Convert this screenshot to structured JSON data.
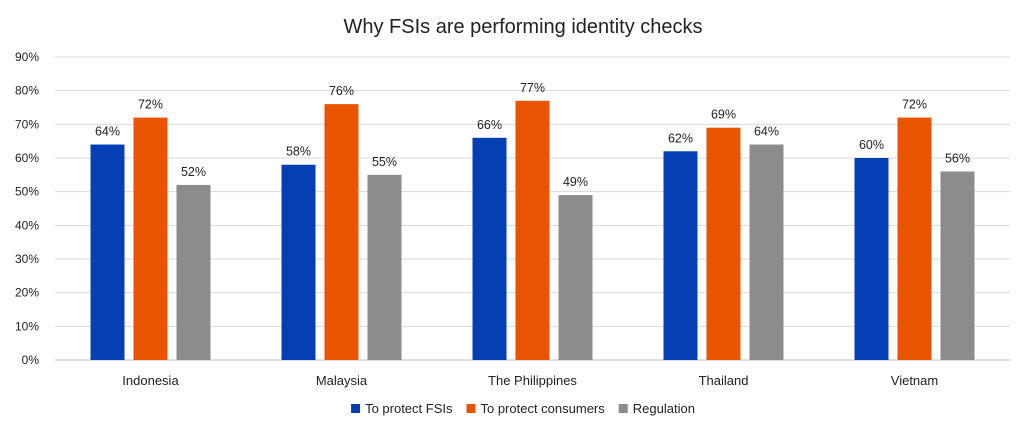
{
  "chart_data": {
    "type": "bar",
    "title": "Why FSIs are performing identity checks",
    "xlabel": "",
    "ylabel": "",
    "ylim": [
      0,
      90
    ],
    "yticks": [
      "0%",
      "10%",
      "20%",
      "30%",
      "40%",
      "50%",
      "60%",
      "70%",
      "80%",
      "90%"
    ],
    "grid": true,
    "legend_position": "bottom",
    "categories": [
      "Indonesia",
      "Malaysia",
      "The Philippines",
      "Thailand",
      "Vietnam"
    ],
    "series": [
      {
        "name": "To protect FSIs",
        "color": "#0440B4",
        "values": [
          64,
          58,
          66,
          62,
          60
        ],
        "labels": [
          "64%",
          "58%",
          "66%",
          "62%",
          "60%"
        ]
      },
      {
        "name": "To protect consumers",
        "color": "#E85400",
        "values": [
          72,
          76,
          77,
          69,
          72
        ],
        "labels": [
          "72%",
          "76%",
          "77%",
          "69%",
          "72%"
        ]
      },
      {
        "name": "Regulation",
        "color": "#8C8C8C",
        "values": [
          52,
          55,
          49,
          64,
          56
        ],
        "labels": [
          "52%",
          "55%",
          "49%",
          "64%",
          "56%"
        ]
      }
    ]
  }
}
